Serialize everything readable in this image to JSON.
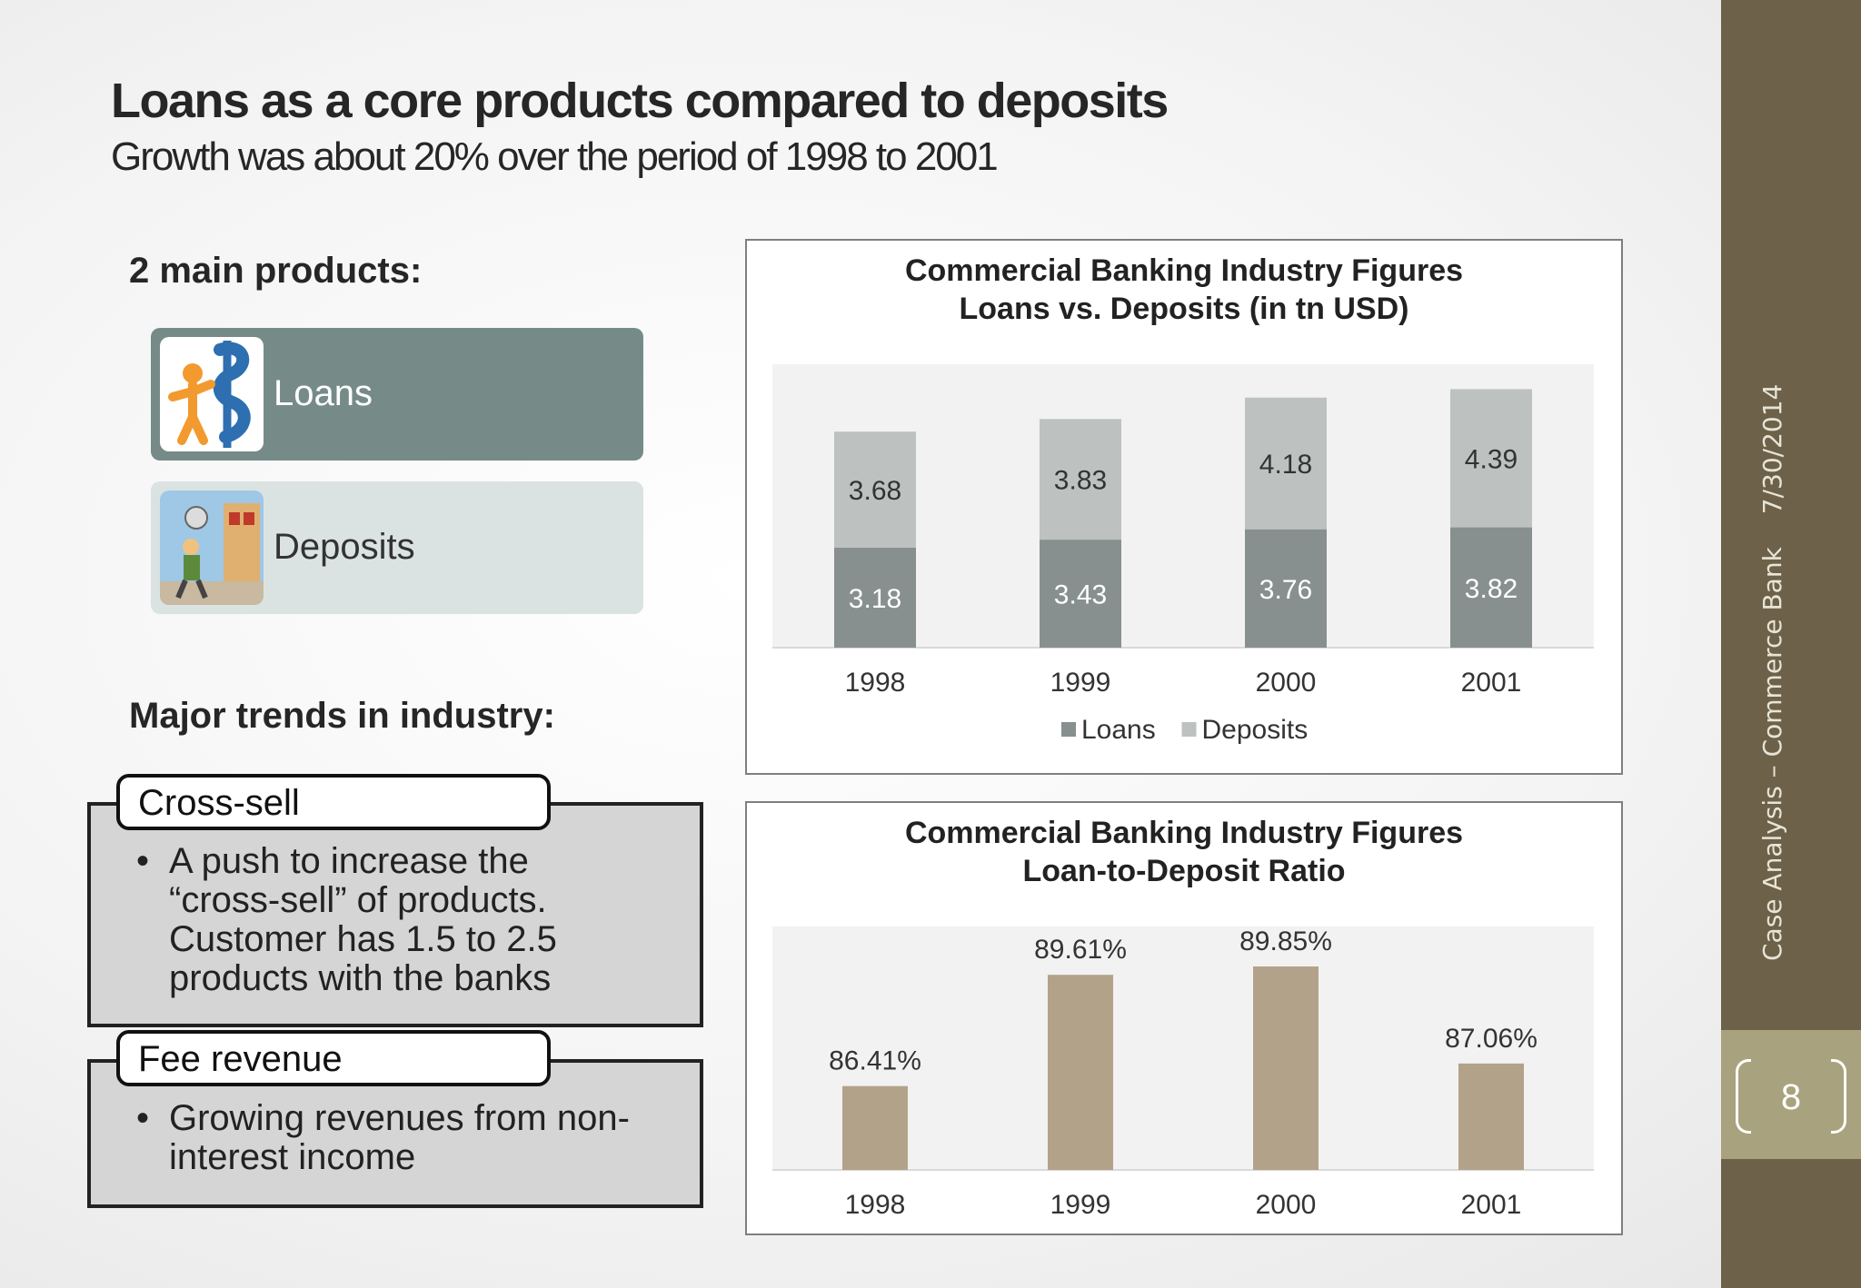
{
  "slide": {
    "title": "Loans as a core products compared to deposits",
    "subtitle": "Growth was about 20% over the period of 1998 to 2001",
    "products_heading": "2 main products:",
    "products": [
      {
        "label": "Loans",
        "icon": "person-with-dollar-icon"
      },
      {
        "label": "Deposits",
        "icon": "bank-street-illustration-icon"
      }
    ],
    "trends_heading": "Major trends in industry:",
    "trends": [
      {
        "title": "Cross-sell",
        "bullets": [
          "A push to increase the “cross-sell” of products. Customer has 1.5 to 2.5 products with the banks"
        ]
      },
      {
        "title": "Fee revenue",
        "bullets": [
          "Growing revenues from non-interest income"
        ]
      }
    ]
  },
  "footer": {
    "case": "Case Analysis – Commerce Bank",
    "date": "7/30/2014",
    "page": "8"
  },
  "colors": {
    "sidebar": "#6d6249",
    "page_box": "#a9a27e",
    "loans_box": "#768b88",
    "deposits_box": "#dbe3e2",
    "loans_bar": "#87908e",
    "deposits_bar": "#bdc2c1",
    "ratio_bar": "#b3a28a",
    "plot_bg": "#f2f2f2"
  },
  "chart_data": [
    {
      "type": "bar",
      "stacked": true,
      "title": "Commercial Banking Industry Figures",
      "subtitle": "Loans vs. Deposits (in tn USD)",
      "categories": [
        "1998",
        "1999",
        "2000",
        "2001"
      ],
      "series": [
        {
          "name": "Loans",
          "values": [
            3.18,
            3.43,
            3.76,
            3.82
          ],
          "color": "#87908e"
        },
        {
          "name": "Deposits",
          "values": [
            3.68,
            3.83,
            4.18,
            4.39
          ],
          "color": "#bdc2c1"
        }
      ],
      "data_labels": true,
      "legend": "bottom",
      "grid": false
    },
    {
      "type": "bar",
      "title": "Commercial Banking Industry Figures",
      "subtitle": "Loan-to-Deposit Ratio",
      "categories": [
        "1998",
        "1999",
        "2000",
        "2001"
      ],
      "values": [
        86.41,
        89.61,
        89.85,
        87.06
      ],
      "value_labels": [
        "86.41%",
        "89.61%",
        "89.85%",
        "87.06%"
      ],
      "color": "#b3a28a",
      "ylim": [
        84,
        91
      ],
      "data_labels": true,
      "grid": false
    }
  ]
}
